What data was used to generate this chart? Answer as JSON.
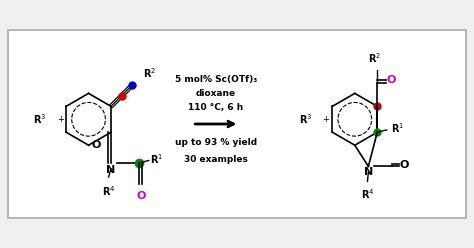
{
  "background_color": "#f0f0f0",
  "box_color": "#ffffff",
  "box_edge_color": "#aaaaaa",
  "title": "",
  "figsize": [
    4.74,
    2.48
  ],
  "dpi": 100,
  "reaction_text_lines": [
    "5 mol% Sc(OTf)₃",
    "dioxane",
    "110 °C, 6 h",
    "",
    "up to 93 % yield",
    "30 examples"
  ],
  "arrow_color": "#000000",
  "colors": {
    "red": "#cc0000",
    "blue": "#0000cc",
    "green": "#008800",
    "magenta": "#cc00cc",
    "black": "#000000",
    "arrow_color": "#000000"
  }
}
